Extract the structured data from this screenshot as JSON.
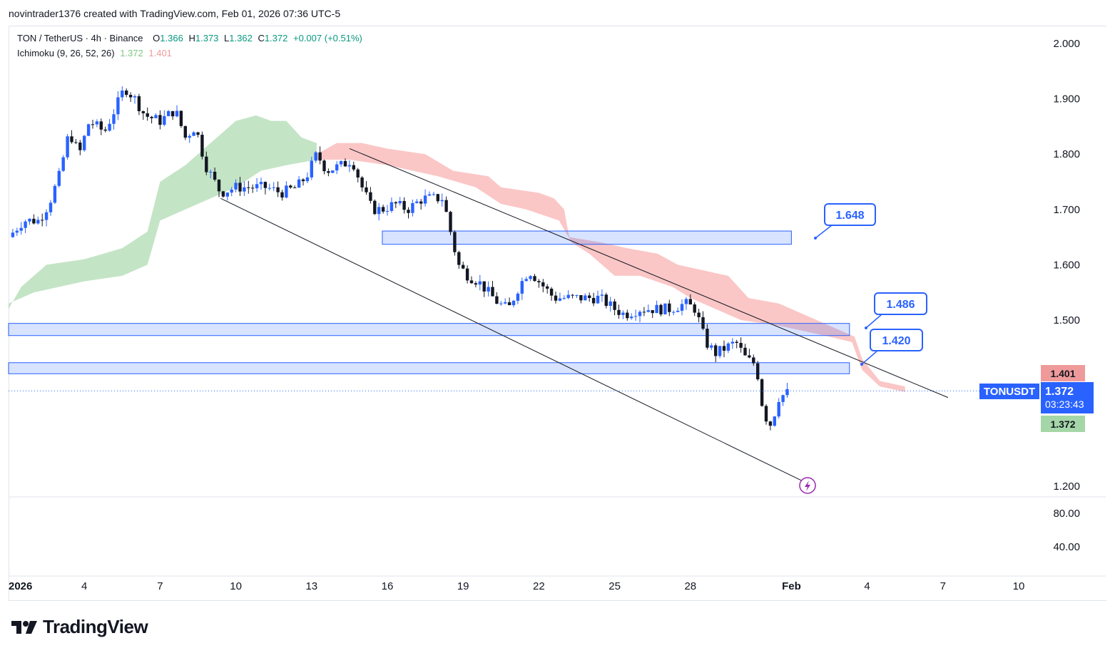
{
  "header": {
    "credit": "novintrader1376 created with TradingView.com, Feb 01, 2026 07:36 UTC-5"
  },
  "legend": {
    "symbol": "TON / TetherUS · 4h · Binance",
    "ohlc": {
      "o_label": "O",
      "o": "1.366",
      "h_label": "H",
      "h": "1.373",
      "l_label": "L",
      "l": "1.362",
      "c_label": "C",
      "c": "1.372",
      "change": "+0.007 (+0.51%)"
    },
    "indicator": "Ichimoku (9, 26, 52, 26)",
    "ind_val1": "1.372",
    "ind_val2": "1.401"
  },
  "colors": {
    "up": "#2962ff",
    "down": "#131722",
    "cloud_bull": "#a5d6a7",
    "cloud_bear": "#f7a9a7",
    "zone": "#2962ff",
    "accent": "#2962ff"
  },
  "chart_data": {
    "type": "candlestick",
    "title": "TON / TetherUS · 4h · Binance",
    "ylim": [
      1.2,
      2.0
    ],
    "y_ticks": [
      "2.000",
      "1.900",
      "1.800",
      "1.700",
      "1.600",
      "1.500",
      "1.200"
    ],
    "sub_ticks": [
      "80.00",
      "40.00"
    ],
    "x_ticks": [
      "2026",
      "4",
      "7",
      "10",
      "13",
      "16",
      "19",
      "22",
      "25",
      "28",
      "Feb",
      "4",
      "7",
      "10"
    ],
    "x_tick_days": [
      1,
      4,
      7,
      10,
      13,
      16,
      19,
      22,
      25,
      28,
      32,
      35,
      38,
      41
    ],
    "price_path": [
      [
        1.0,
        1.65
      ],
      [
        1.6,
        1.68
      ],
      [
        2.2,
        1.68
      ],
      [
        2.6,
        1.71
      ],
      [
        3.0,
        1.76
      ],
      [
        3.4,
        1.84
      ],
      [
        3.8,
        1.8
      ],
      [
        4.2,
        1.86
      ],
      [
        4.8,
        1.84
      ],
      [
        5.2,
        1.88
      ],
      [
        5.6,
        1.92
      ],
      [
        6.0,
        1.9
      ],
      [
        6.4,
        1.87
      ],
      [
        7.0,
        1.86
      ],
      [
        7.6,
        1.88
      ],
      [
        8.0,
        1.83
      ],
      [
        8.4,
        1.85
      ],
      [
        8.8,
        1.78
      ],
      [
        9.4,
        1.73
      ],
      [
        10.0,
        1.74
      ],
      [
        10.6,
        1.74
      ],
      [
        11.2,
        1.74
      ],
      [
        11.8,
        1.73
      ],
      [
        12.4,
        1.74
      ],
      [
        12.8,
        1.76
      ],
      [
        13.2,
        1.8
      ],
      [
        13.6,
        1.77
      ],
      [
        14.2,
        1.78
      ],
      [
        14.6,
        1.79
      ],
      [
        15.0,
        1.74
      ],
      [
        15.4,
        1.7
      ],
      [
        15.8,
        1.7
      ],
      [
        16.3,
        1.71
      ],
      [
        16.8,
        1.7
      ],
      [
        17.4,
        1.72
      ],
      [
        17.8,
        1.72
      ],
      [
        18.2,
        1.72
      ],
      [
        18.5,
        1.66
      ],
      [
        18.8,
        1.6
      ],
      [
        19.2,
        1.58
      ],
      [
        19.6,
        1.57
      ],
      [
        20.0,
        1.55
      ],
      [
        20.4,
        1.53
      ],
      [
        20.8,
        1.52
      ],
      [
        21.2,
        1.56
      ],
      [
        21.6,
        1.59
      ],
      [
        22.0,
        1.57
      ],
      [
        22.6,
        1.54
      ],
      [
        23.2,
        1.54
      ],
      [
        23.8,
        1.54
      ],
      [
        24.4,
        1.54
      ],
      [
        25.0,
        1.52
      ],
      [
        25.4,
        1.51
      ],
      [
        26.0,
        1.52
      ],
      [
        26.6,
        1.52
      ],
      [
        27.2,
        1.52
      ],
      [
        27.8,
        1.53
      ],
      [
        28.2,
        1.52
      ],
      [
        28.6,
        1.46
      ],
      [
        29.0,
        1.44
      ],
      [
        29.4,
        1.45
      ],
      [
        29.8,
        1.46
      ],
      [
        30.2,
        1.43
      ],
      [
        30.6,
        1.42
      ],
      [
        30.9,
        1.33
      ],
      [
        31.2,
        1.31
      ],
      [
        31.5,
        1.36
      ],
      [
        31.9,
        1.37
      ]
    ],
    "cloud_bull": [
      [
        1.0,
        1.52
      ],
      [
        1.5,
        1.56
      ],
      [
        2.5,
        1.6
      ],
      [
        4.0,
        1.61
      ],
      [
        5.5,
        1.63
      ],
      [
        6.5,
        1.66
      ],
      [
        7.0,
        1.75
      ],
      [
        8.0,
        1.78
      ],
      [
        9.0,
        1.82
      ],
      [
        10.0,
        1.86
      ],
      [
        10.8,
        1.87
      ],
      [
        11.4,
        1.86
      ],
      [
        12.0,
        1.86
      ],
      [
        12.6,
        1.83
      ],
      [
        13.2,
        1.82
      ],
      [
        13.2,
        1.79
      ],
      [
        12.0,
        1.78
      ],
      [
        11.0,
        1.77
      ],
      [
        10.0,
        1.74
      ],
      [
        9.0,
        1.72
      ],
      [
        8.0,
        1.7
      ],
      [
        7.0,
        1.68
      ],
      [
        6.5,
        1.6
      ],
      [
        5.5,
        1.58
      ],
      [
        4.0,
        1.57
      ],
      [
        2.0,
        1.55
      ],
      [
        1.0,
        1.53
      ]
    ],
    "cloud_bear": [
      [
        13.2,
        1.8
      ],
      [
        14.0,
        1.82
      ],
      [
        15.0,
        1.82
      ],
      [
        16.0,
        1.81
      ],
      [
        17.5,
        1.8
      ],
      [
        18.6,
        1.77
      ],
      [
        20.0,
        1.76
      ],
      [
        20.5,
        1.74
      ],
      [
        22.0,
        1.73
      ],
      [
        22.6,
        1.72
      ],
      [
        23.0,
        1.7
      ],
      [
        23.2,
        1.65
      ],
      [
        24.5,
        1.64
      ],
      [
        25.5,
        1.63
      ],
      [
        26.7,
        1.62
      ],
      [
        27.5,
        1.6
      ],
      [
        29.5,
        1.58
      ],
      [
        30.3,
        1.54
      ],
      [
        31.5,
        1.53
      ],
      [
        32.5,
        1.51
      ],
      [
        34.0,
        1.48
      ],
      [
        34.5,
        1.47
      ],
      [
        34.8,
        1.43
      ],
      [
        35.5,
        1.39
      ],
      [
        36.5,
        1.38
      ],
      [
        36.5,
        1.37
      ],
      [
        35.5,
        1.38
      ],
      [
        34.8,
        1.41
      ],
      [
        34.4,
        1.46
      ],
      [
        33.5,
        1.47
      ],
      [
        32.5,
        1.48
      ],
      [
        31.5,
        1.49
      ],
      [
        30.0,
        1.5
      ],
      [
        29.0,
        1.52
      ],
      [
        28.0,
        1.54
      ],
      [
        27.3,
        1.56
      ],
      [
        26.0,
        1.58
      ],
      [
        25.0,
        1.58
      ],
      [
        24.0,
        1.62
      ],
      [
        23.3,
        1.64
      ],
      [
        22.8,
        1.68
      ],
      [
        21.5,
        1.7
      ],
      [
        20.5,
        1.71
      ],
      [
        19.5,
        1.74
      ],
      [
        18.0,
        1.76
      ],
      [
        16.0,
        1.78
      ],
      [
        14.5,
        1.79
      ],
      [
        13.2,
        1.79
      ]
    ],
    "zones": [
      {
        "label": "1.648",
        "y_low": 1.637,
        "y_high": 1.661,
        "x_start": 15.8,
        "x_end": 32.0
      },
      {
        "label": "1.486",
        "y_low": 1.472,
        "y_high": 1.494,
        "x_start": 1.0,
        "x_end": 34.3
      },
      {
        "label": "1.420",
        "y_low": 1.403,
        "y_high": 1.423,
        "x_start": 1.0,
        "x_end": 34.3
      }
    ],
    "trendlines": [
      {
        "name": "channel-upper",
        "from": [
          14.5,
          1.81
        ],
        "to": [
          38.2,
          1.36
        ]
      },
      {
        "name": "channel-lower",
        "from": [
          9.4,
          1.72
        ],
        "to": [
          32.4,
          1.21
        ]
      }
    ],
    "last_price": {
      "symbol": "TONUSDT",
      "value": "1.372",
      "countdown": "03:23:43"
    },
    "indicator_tags": {
      "cloud_top": "1.401",
      "cloud_bottom": "1.372"
    }
  },
  "branding": {
    "logo": "TradingView"
  },
  "event_icon": "lightning-icon"
}
